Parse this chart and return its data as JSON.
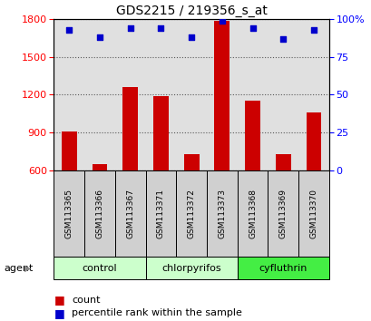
{
  "title": "GDS2215 / 219356_s_at",
  "samples": [
    "GSM113365",
    "GSM113366",
    "GSM113367",
    "GSM113371",
    "GSM113372",
    "GSM113373",
    "GSM113368",
    "GSM113369",
    "GSM113370"
  ],
  "counts": [
    910,
    650,
    1260,
    1190,
    730,
    1790,
    1150,
    730,
    1060
  ],
  "percentiles": [
    93,
    88,
    94,
    94,
    88,
    99,
    94,
    87,
    93
  ],
  "groups": [
    {
      "label": "control",
      "indices": [
        0,
        1,
        2
      ],
      "color": "#ccffcc"
    },
    {
      "label": "chlorpyrifos",
      "indices": [
        3,
        4,
        5
      ],
      "color": "#ccffcc"
    },
    {
      "label": "cyfluthrin",
      "indices": [
        6,
        7,
        8
      ],
      "color": "#44ee44"
    }
  ],
  "count_base": 600,
  "ylim_left": [
    600,
    1800
  ],
  "ylim_right": [
    0,
    100
  ],
  "yticks_left": [
    600,
    900,
    1200,
    1500,
    1800
  ],
  "yticks_right": [
    0,
    25,
    50,
    75,
    100
  ],
  "bar_color": "#cc0000",
  "dot_color": "#0000cc",
  "bar_width": 0.5,
  "background_color": "#ffffff",
  "plot_bg_color": "#e0e0e0",
  "sample_box_color": "#d0d0d0",
  "agent_label": "agent"
}
